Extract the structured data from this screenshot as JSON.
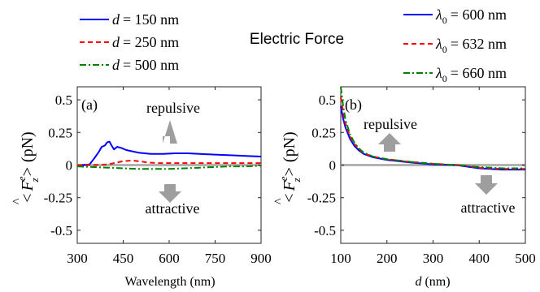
{
  "figure_title": "Electric Force",
  "chart_data": [
    {
      "panel_label": "(a)",
      "type": "line",
      "xlabel": "Wavelength (nm)",
      "ylabel": {
        "lt": "<",
        "F": "F",
        "hat": "^",
        "sup": "e",
        "sub": "z",
        "gt": ">",
        "unit": "(pN)"
      },
      "xlim": [
        300,
        900
      ],
      "ylim": [
        -0.6,
        0.6
      ],
      "xticks": [
        300,
        450,
        600,
        750,
        900
      ],
      "yticks": [
        -0.5,
        -0.25,
        0,
        0.25,
        0.5
      ],
      "ytick_labels": [
        "-0.5",
        "-0.25",
        "0",
        "0.25",
        "0.5"
      ],
      "xtick_labels": [
        "300",
        "450",
        "600",
        "750",
        "900"
      ],
      "legend": {
        "placement": "top-left, above plot",
        "entries": [
          {
            "var": "d",
            "value": "= 150 nm"
          },
          {
            "var": "d",
            "value": "= 250 nm"
          },
          {
            "var": "d",
            "value": "= 500 nm"
          }
        ]
      },
      "annotations": {
        "upper": "repulsive",
        "lower": "attractive"
      },
      "series": [
        {
          "color": "#0000ff",
          "dash": "solid",
          "x": [
            300,
            320,
            340,
            355,
            370,
            380,
            390,
            398,
            405,
            412,
            420,
            430,
            445,
            460,
            480,
            500,
            540,
            580,
            620,
            660,
            700,
            750,
            800,
            850,
            900
          ],
          "y": [
            0.0,
            0.0,
            0.005,
            0.05,
            0.1,
            0.14,
            0.15,
            0.175,
            0.18,
            0.15,
            0.12,
            0.14,
            0.13,
            0.115,
            0.105,
            0.095,
            0.085,
            0.085,
            0.09,
            0.09,
            0.085,
            0.08,
            0.075,
            0.07,
            0.065
          ]
        },
        {
          "color": "#ff0000",
          "dash": "dashed",
          "x": [
            300,
            350,
            400,
            430,
            450,
            480,
            500,
            530,
            560,
            600,
            650,
            700,
            750,
            800,
            850,
            900
          ],
          "y": [
            0.0,
            0.0,
            0.005,
            0.02,
            0.03,
            0.035,
            0.03,
            0.02,
            0.015,
            0.015,
            0.015,
            0.015,
            0.015,
            0.015,
            0.015,
            0.015
          ]
        },
        {
          "color": "#008000",
          "dash": "dashdot",
          "x": [
            300,
            350,
            400,
            450,
            500,
            550,
            600,
            650,
            700,
            750,
            800,
            850,
            900
          ],
          "y": [
            -0.01,
            -0.015,
            -0.02,
            -0.025,
            -0.03,
            -0.03,
            -0.03,
            -0.025,
            -0.02,
            -0.015,
            -0.01,
            -0.01,
            -0.005
          ]
        }
      ]
    },
    {
      "panel_label": "(b)",
      "type": "line",
      "xlabel_var": "d",
      "xlabel_unit": " (nm)",
      "ylabel": {
        "lt": "<",
        "F": "F",
        "hat": "^",
        "sup": "e",
        "sub": "z",
        "gt": ">",
        "unit": "(pN)"
      },
      "xlim": [
        100,
        500
      ],
      "ylim": [
        -0.6,
        0.6
      ],
      "xticks": [
        100,
        200,
        300,
        400,
        500
      ],
      "xtick_labels": [
        "100",
        "200",
        "300",
        "400",
        "500"
      ],
      "yticks": [
        -0.5,
        -0.25,
        0,
        0.25,
        0.5
      ],
      "ytick_labels": [
        "-0.5",
        "-0.25",
        "0",
        "0.25",
        "0.5"
      ],
      "legend": {
        "placement": "top-right, above plot",
        "entries": [
          {
            "var": "λ",
            "sub": "0",
            "value": "= 600 nm"
          },
          {
            "var": "λ",
            "sub": "0",
            "value": "= 632 nm"
          },
          {
            "var": "λ",
            "sub": "0",
            "value": "= 660 nm"
          }
        ]
      },
      "annotations": {
        "upper": "repulsive",
        "lower": "attractive"
      },
      "series": [
        {
          "color": "#0000ff",
          "dash": "solid",
          "x": [
            100,
            105,
            110,
            120,
            130,
            140,
            150,
            170,
            200,
            250,
            300,
            350,
            370,
            400,
            450,
            500
          ],
          "y": [
            0.45,
            0.36,
            0.29,
            0.2,
            0.145,
            0.11,
            0.085,
            0.06,
            0.04,
            0.02,
            0.005,
            0.0,
            -0.01,
            -0.025,
            -0.035,
            -0.035
          ]
        },
        {
          "color": "#ff0000",
          "dash": "dashed",
          "x": [
            100,
            105,
            110,
            120,
            130,
            140,
            150,
            170,
            200,
            250,
            300,
            350,
            370,
            400,
            450,
            500
          ],
          "y": [
            0.52,
            0.41,
            0.32,
            0.22,
            0.16,
            0.12,
            0.09,
            0.065,
            0.045,
            0.025,
            0.01,
            0.0,
            -0.005,
            -0.02,
            -0.03,
            -0.03
          ]
        },
        {
          "color": "#008000",
          "dash": "dashdot",
          "x": [
            100,
            105,
            110,
            120,
            130,
            140,
            150,
            170,
            200,
            250,
            300,
            350,
            370,
            400,
            450,
            500
          ],
          "y": [
            0.6,
            0.46,
            0.35,
            0.235,
            0.17,
            0.125,
            0.095,
            0.065,
            0.045,
            0.025,
            0.01,
            0.0,
            -0.005,
            -0.015,
            -0.025,
            -0.025
          ]
        }
      ]
    }
  ]
}
